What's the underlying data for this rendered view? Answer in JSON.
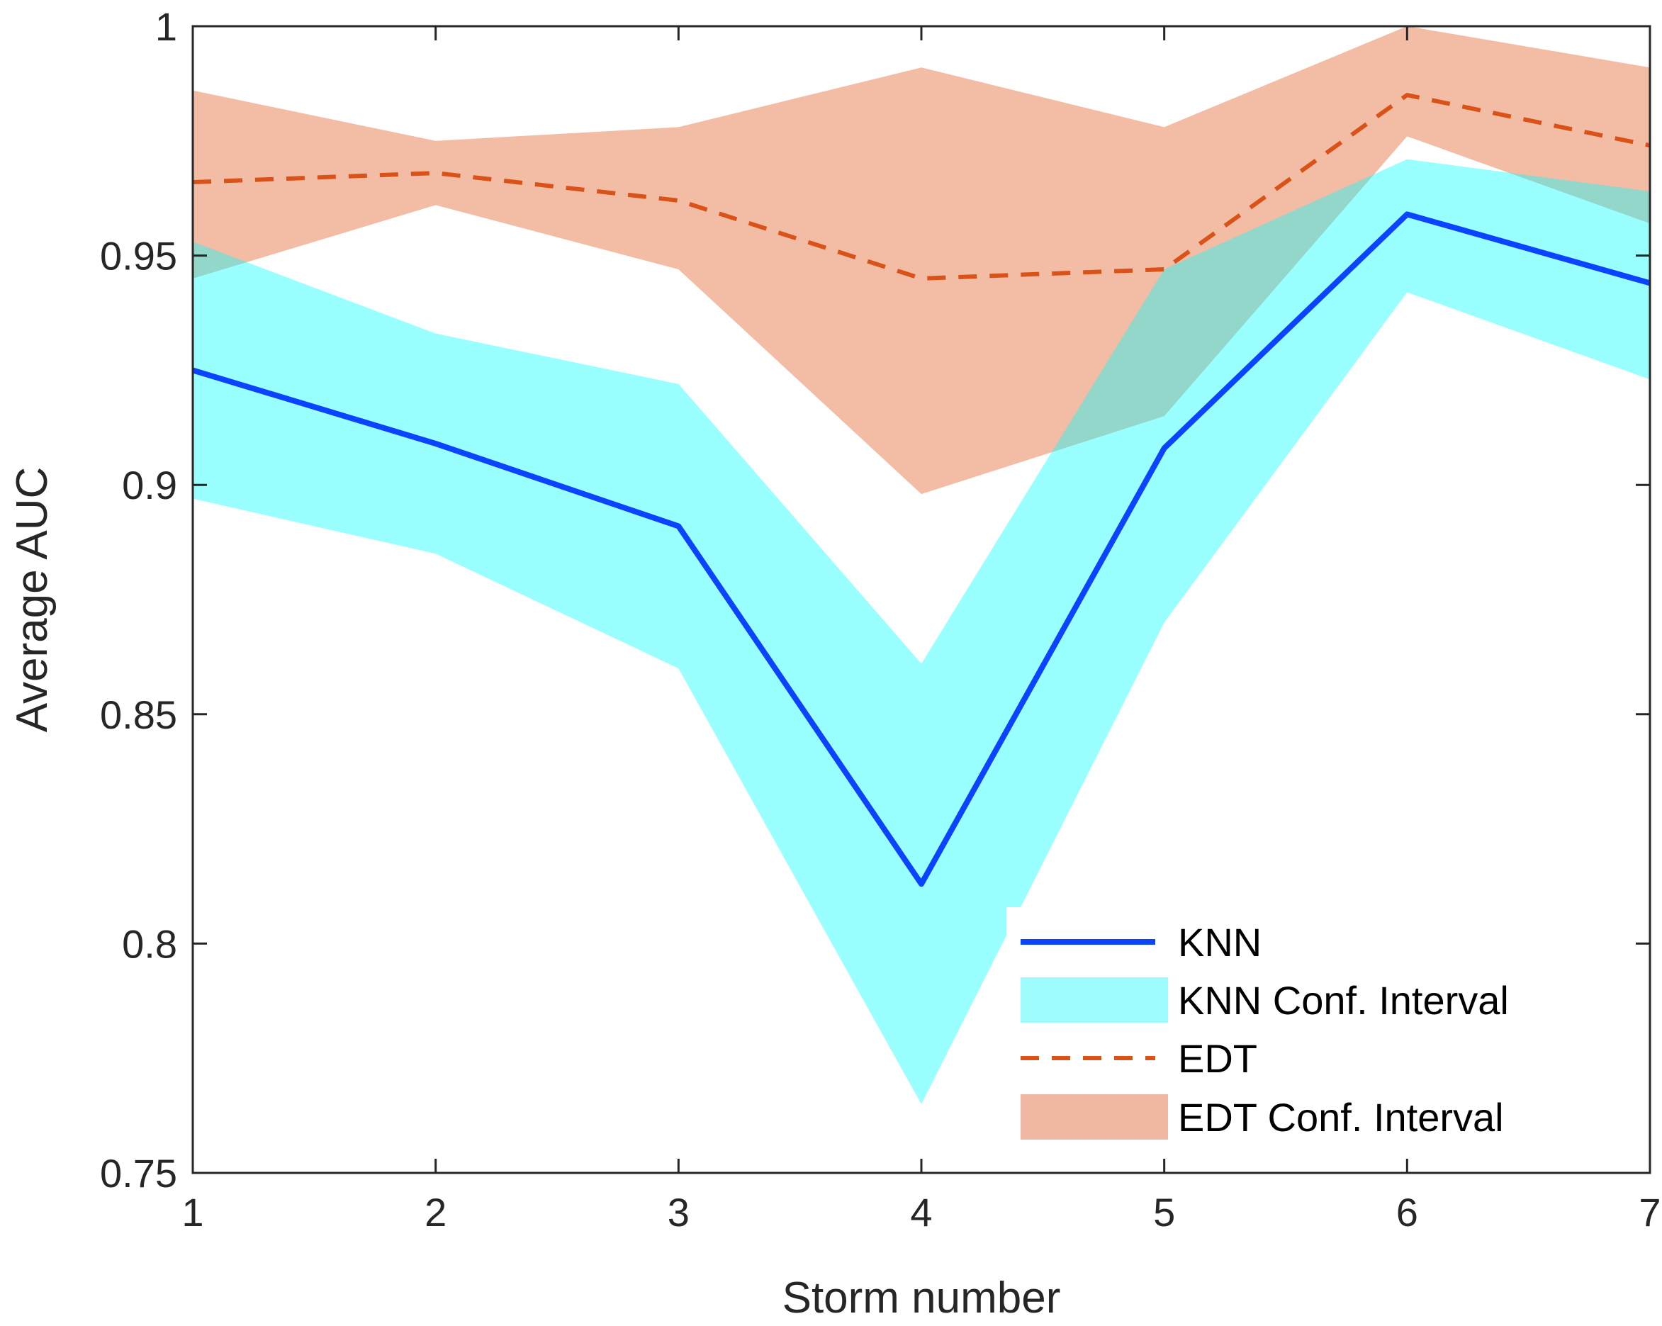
{
  "chart_data": {
    "type": "line",
    "title": "",
    "xlabel": "Storm number",
    "ylabel": "Average AUC",
    "xlim": [
      1,
      7
    ],
    "ylim": [
      0.75,
      1
    ],
    "x_ticks": [
      "1",
      "2",
      "3",
      "4",
      "5",
      "6",
      "7"
    ],
    "y_ticks": [
      "0.75",
      "0.8",
      "0.85",
      "0.9",
      "0.95",
      "1"
    ],
    "grid": false,
    "legend_position": "bottom-right",
    "x": [
      1,
      2,
      3,
      4,
      5,
      6,
      7
    ],
    "bands": [
      {
        "name": "EDT Conf. Interval",
        "color": "#e8794b",
        "opacity": 0.5,
        "lower": [
          0.945,
          0.961,
          0.947,
          0.898,
          0.915,
          0.976,
          0.957
        ],
        "upper": [
          0.986,
          0.975,
          0.978,
          0.991,
          0.978,
          1.0,
          0.991
        ]
      },
      {
        "name": "KNN Conf. Interval",
        "color": "#00ffff",
        "opacity": 0.4,
        "lower": [
          0.897,
          0.885,
          0.86,
          0.765,
          0.87,
          0.942,
          0.923
        ],
        "upper": [
          0.953,
          0.933,
          0.922,
          0.861,
          0.947,
          0.971,
          0.964
        ]
      }
    ],
    "series": [
      {
        "name": "KNN",
        "color": "#0b43ff",
        "style": "solid",
        "values": [
          0.925,
          0.909,
          0.891,
          0.813,
          0.908,
          0.959,
          0.944
        ]
      },
      {
        "name": "EDT",
        "color": "#d95319",
        "style": "dashed",
        "values": [
          0.966,
          0.968,
          0.962,
          0.945,
          0.947,
          0.985,
          0.974
        ]
      }
    ],
    "legend": [
      {
        "label": "KNN",
        "kind": "line",
        "color": "#0b43ff",
        "style": "solid"
      },
      {
        "label": "KNN Conf. Interval",
        "kind": "patch",
        "color": "#9ffcfc"
      },
      {
        "label": "EDT",
        "kind": "line",
        "color": "#d95319",
        "style": "dashed"
      },
      {
        "label": "EDT Conf. Interval",
        "kind": "patch",
        "color": "#f0b8a2"
      }
    ]
  }
}
